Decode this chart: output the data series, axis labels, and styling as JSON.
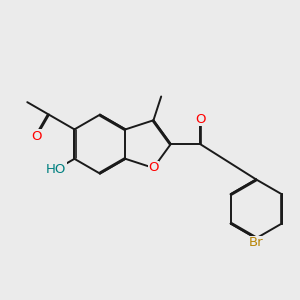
{
  "bg_color": "#ebebeb",
  "bond_color": "#1a1a1a",
  "bond_width": 1.4,
  "atom_colors": {
    "O": "#ff0000",
    "Br": "#b8860b",
    "HO": "#008080"
  },
  "font_size": 9.5
}
